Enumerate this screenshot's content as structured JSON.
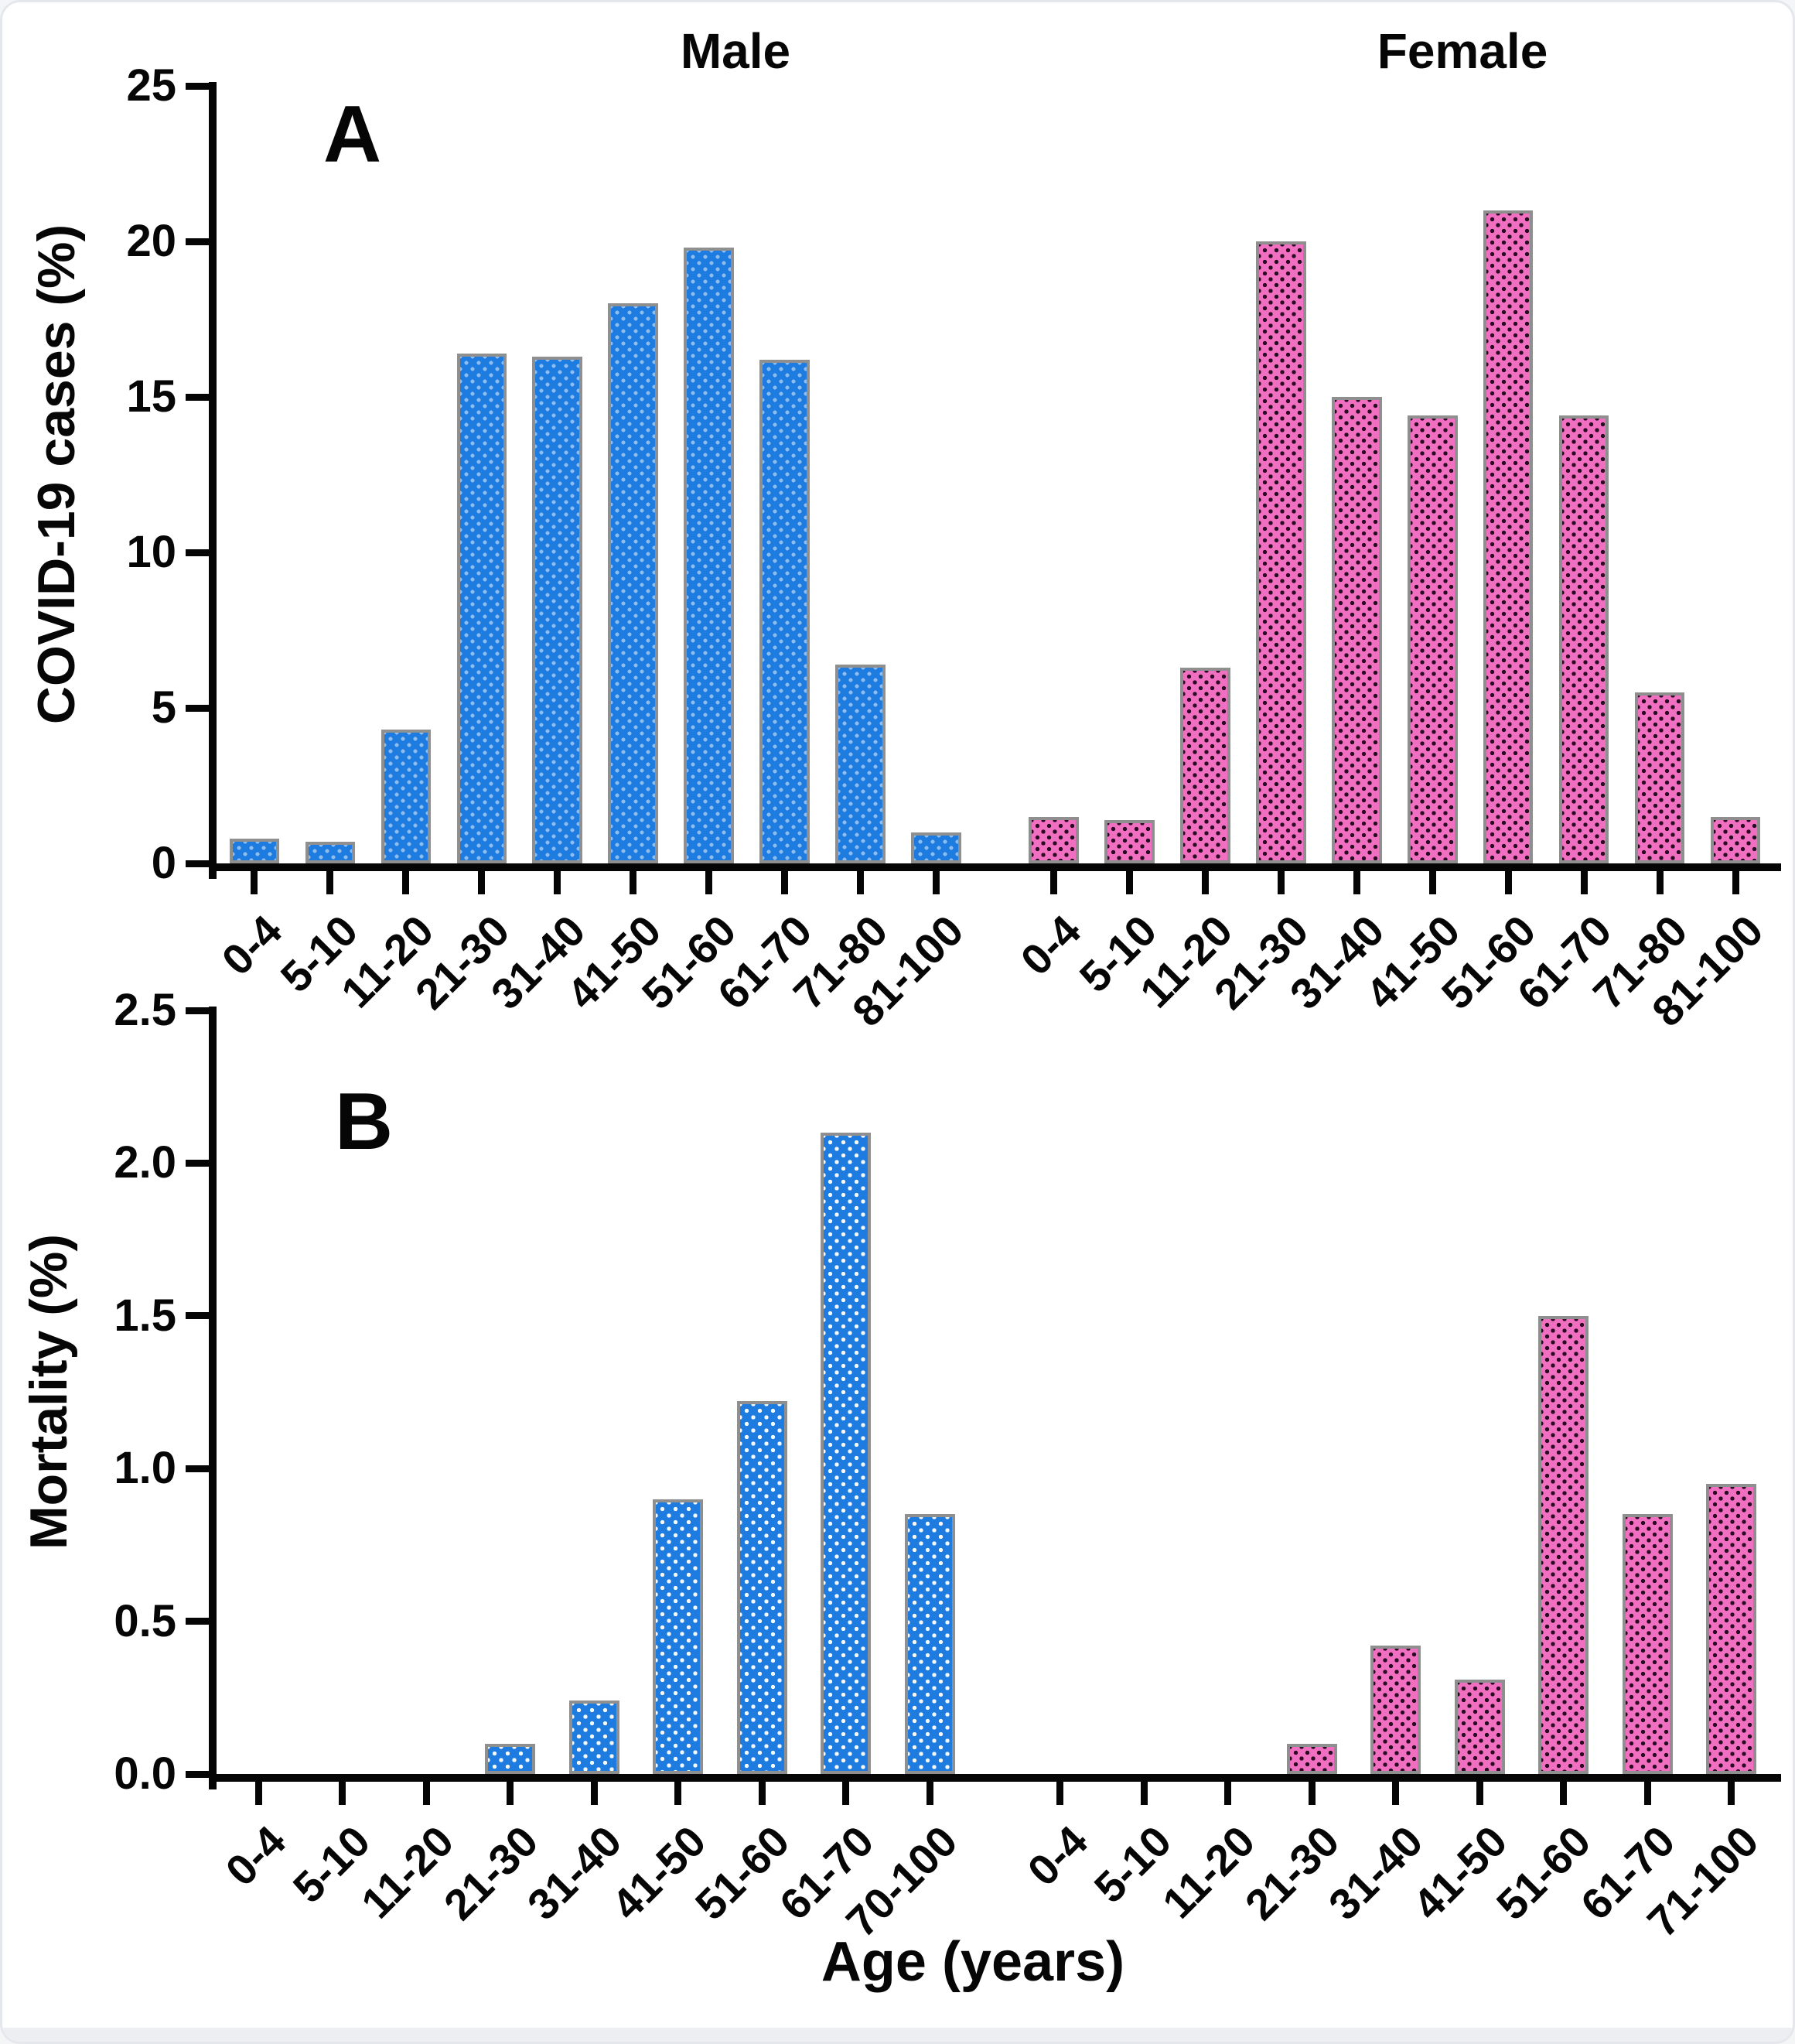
{
  "page": {
    "xlabel": "Age (years)"
  },
  "chart_data": [
    {
      "type": "bar",
      "panel_label": "A",
      "ylabel": "COVID-19 cases (%)",
      "xlabel": "Age (years)",
      "ylim": [
        0,
        25
      ],
      "yticks": [
        0,
        5,
        10,
        15,
        20,
        25
      ],
      "ytick_labels": [
        "0",
        "5",
        "10",
        "15",
        "20",
        "25"
      ],
      "legend_position": "none",
      "grid": false,
      "group_header_labels": [
        "Male",
        "Female"
      ],
      "series": [
        {
          "name": "Male",
          "color": "#1E7BE0",
          "dot_color": "#FFFFFF",
          "categories": [
            "0-4",
            "5-10",
            "11-20",
            "21-30",
            "31-40",
            "41-50",
            "51-60",
            "61-70",
            "71-80",
            "81-100"
          ],
          "values": [
            0.8,
            0.7,
            4.3,
            16.4,
            16.3,
            18.0,
            19.8,
            16.2,
            6.4,
            1.0
          ]
        },
        {
          "name": "Female",
          "color": "#F06FC0",
          "dot_color": "#2A0A22",
          "categories": [
            "0-4",
            "5-10",
            "11-20",
            "21-30",
            "31-40",
            "41-50",
            "51-60",
            "61-70",
            "71-80",
            "81-100"
          ],
          "values": [
            1.5,
            1.4,
            6.3,
            20.0,
            15.0,
            14.4,
            21.0,
            14.4,
            5.5,
            1.5
          ]
        }
      ]
    },
    {
      "type": "bar",
      "panel_label": "B",
      "ylabel": "Mortality (%)",
      "xlabel": "Age (years)",
      "ylim": [
        0,
        2.5
      ],
      "yticks": [
        0,
        0.5,
        1.0,
        1.5,
        2.0,
        2.5
      ],
      "ytick_labels": [
        "0.0",
        "0.5",
        "1.0",
        "1.5",
        "2.0",
        "2.5"
      ],
      "legend_position": "none",
      "grid": false,
      "series": [
        {
          "name": "Male",
          "color": "#1E7BE0",
          "dot_color": "#FFFFFF",
          "categories": [
            "0-4",
            "5-10",
            "11-20",
            "21-30",
            "31-40",
            "41-50",
            "51-60",
            "61-70",
            "70-100"
          ],
          "values": [
            0,
            0,
            0,
            0.1,
            0.24,
            0.9,
            1.22,
            2.1,
            0.85
          ]
        },
        {
          "name": "Female",
          "color": "#F06FC0",
          "dot_color": "#2A0A22",
          "categories": [
            "0-4",
            "5-10",
            "11-20",
            "21-30",
            "31-40",
            "41-50",
            "51-60",
            "61-70",
            "71-100"
          ],
          "values": [
            0,
            0,
            0,
            0.1,
            0.42,
            0.31,
            1.5,
            0.85,
            0.95
          ]
        }
      ]
    }
  ]
}
